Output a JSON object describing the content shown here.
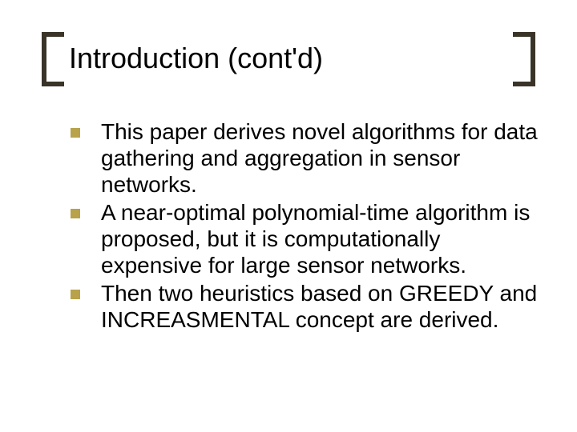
{
  "colors": {
    "bracket": "#3a3428",
    "bullet": "#b8a24a",
    "text": "#000000",
    "background": "#ffffff"
  },
  "typography": {
    "title_fontsize": 36,
    "body_fontsize": 28,
    "font_family": "Arial"
  },
  "title": "Introduction (cont'd)",
  "bullets": [
    "This paper derives novel algorithms for data gathering and aggregation in sensor networks.",
    "A near-optimal polynomial-time algorithm is proposed, but it is computationally expensive for large sensor networks.",
    "Then two heuristics based on GREEDY and INCREASMENTAL concept are derived."
  ]
}
